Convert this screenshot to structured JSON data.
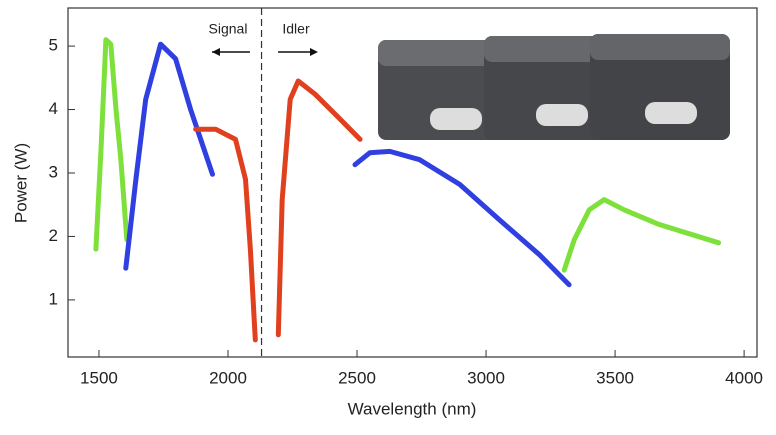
{
  "chart_data": {
    "type": "line",
    "xlabel": "Wavelength (nm)",
    "ylabel": "Power (W)",
    "xlim": [
      1380,
      4050
    ],
    "ylim": [
      0.1,
      5.6
    ],
    "xticks": [
      1500,
      2000,
      2500,
      3000,
      3500,
      4000
    ],
    "yticks": [
      1,
      2,
      3,
      4,
      5
    ],
    "divider_x": 2130,
    "annotations": [
      "Signal",
      "Idler"
    ],
    "series": [
      {
        "color": "#7ee03a",
        "x": [
          1488,
          1508,
          1527,
          1546,
          1566,
          1585,
          1608
        ],
        "values": [
          1.8,
          3.37,
          5.1,
          5.03,
          4.0,
          3.2,
          1.95
        ]
      },
      {
        "color": "#2f3fe0",
        "x": [
          1604,
          1643,
          1681,
          1739,
          1797,
          1855,
          1940
        ],
        "values": [
          1.5,
          2.9,
          4.16,
          5.03,
          4.8,
          4.0,
          2.98
        ]
      },
      {
        "color": "#e0401e",
        "x": [
          1875,
          1952,
          2029,
          2068,
          2087,
          2106
        ],
        "values": [
          3.69,
          3.69,
          3.53,
          2.9,
          1.79,
          0.37
        ]
      },
      {
        "color": "#e0401e",
        "x": [
          2195,
          2210,
          2241,
          2272,
          2338,
          2434,
          2512
        ],
        "values": [
          0.45,
          2.58,
          4.16,
          4.45,
          4.24,
          3.85,
          3.53
        ]
      },
      {
        "color": "#2f3fe0",
        "x": [
          2492,
          2550,
          2627,
          2743,
          2898,
          3052,
          3207,
          3322
        ],
        "values": [
          3.13,
          3.32,
          3.34,
          3.21,
          2.82,
          2.26,
          1.71,
          1.24
        ]
      },
      {
        "color": "#7ee03a",
        "x": [
          3303,
          3342,
          3400,
          3458,
          3535,
          3670,
          3901
        ],
        "values": [
          1.47,
          1.95,
          2.42,
          2.58,
          2.42,
          2.19,
          1.9
        ]
      }
    ]
  }
}
